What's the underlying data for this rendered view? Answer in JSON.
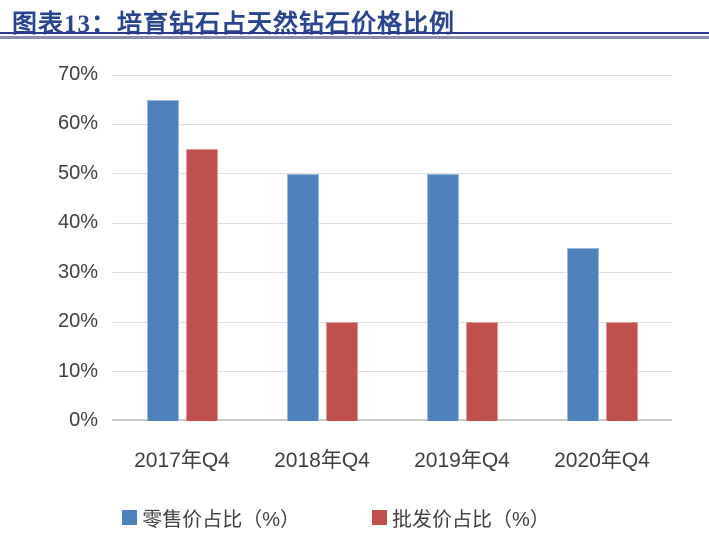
{
  "header": {
    "figure_label": "图表13：培育钻石占天然钻石价格比例"
  },
  "colors": {
    "title": "#2B4490",
    "rule_top": "#2B3990",
    "rule_bottom": "#8C8CB0",
    "axis_text": "#404040",
    "gridline": "#DEDEDE",
    "series_blue": "#4F81BD",
    "series_red": "#C0504D"
  },
  "chart_data": {
    "type": "bar",
    "title": "培育钻石占天然钻石价格比例",
    "categories": [
      "2017年Q4",
      "2018年Q4",
      "2019年Q4",
      "2020年Q4"
    ],
    "series": [
      {
        "name": "零售价占比（%）",
        "color": "#4F81BD",
        "values": [
          65,
          50,
          50,
          35
        ]
      },
      {
        "name": "批发价占比（%）",
        "color": "#C0504D",
        "values": [
          55,
          20,
          20,
          20
        ]
      }
    ],
    "xlabel": "",
    "ylabel": "",
    "ylim": [
      0,
      70
    ],
    "ytick_step": 10,
    "yticks": [
      "0%",
      "10%",
      "20%",
      "30%",
      "40%",
      "50%",
      "60%",
      "70%"
    ],
    "grid": "horizontal",
    "legend_position": "bottom"
  }
}
